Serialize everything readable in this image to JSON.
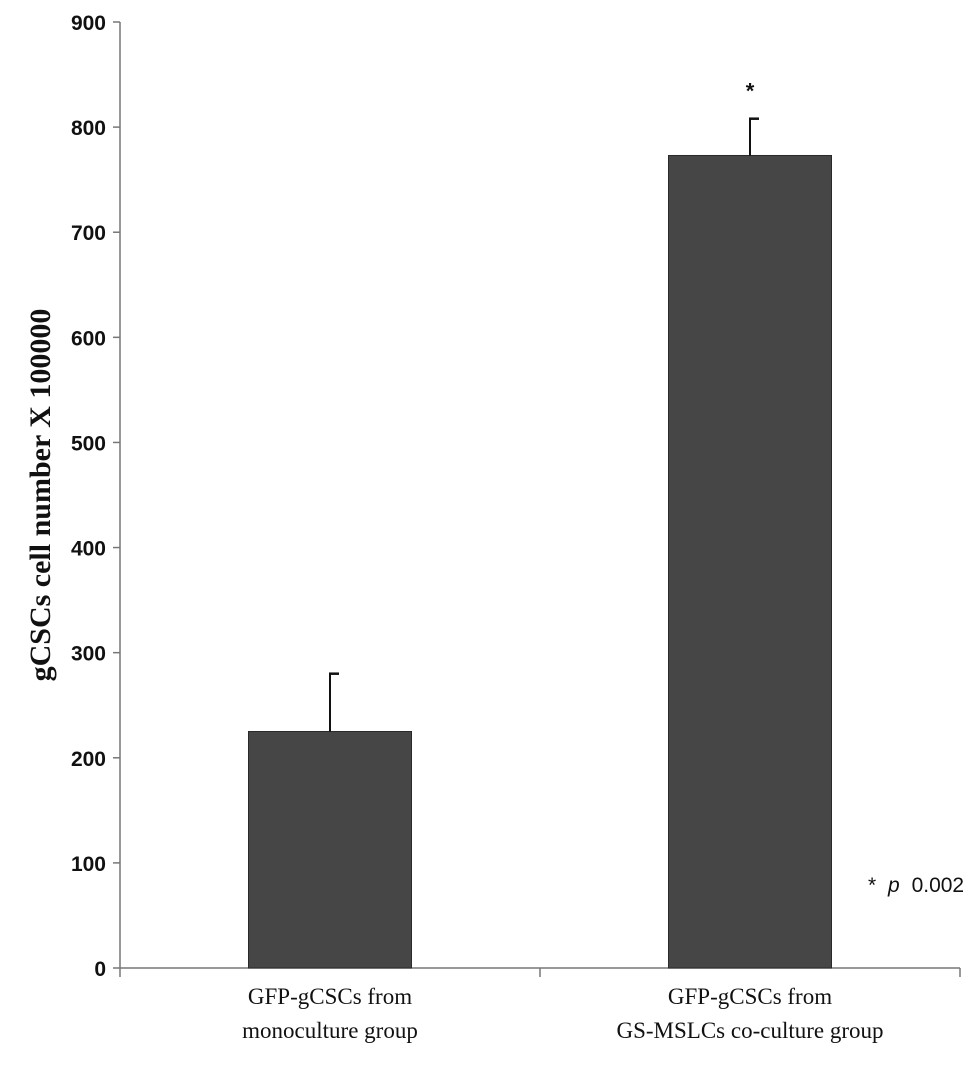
{
  "chart_data": {
    "type": "bar",
    "categories": [
      [
        "GFP-gCSCs from",
        "monoculture group"
      ],
      [
        "GFP-gCSCs from",
        "GS-MSLCs co-culture group"
      ]
    ],
    "values": [
      225,
      773
    ],
    "error_upper": [
      280,
      808
    ],
    "significance_marks": [
      "",
      "*"
    ],
    "ylabel": "gCSCs cell number X 100000",
    "ylim": [
      0,
      900
    ],
    "yticks": [
      0,
      100,
      200,
      300,
      400,
      500,
      600,
      700,
      800,
      900
    ],
    "grid": false,
    "bar_color": "#464646",
    "annotation": {
      "star": "*",
      "p_symbol": "p",
      "value": "0.002"
    }
  }
}
